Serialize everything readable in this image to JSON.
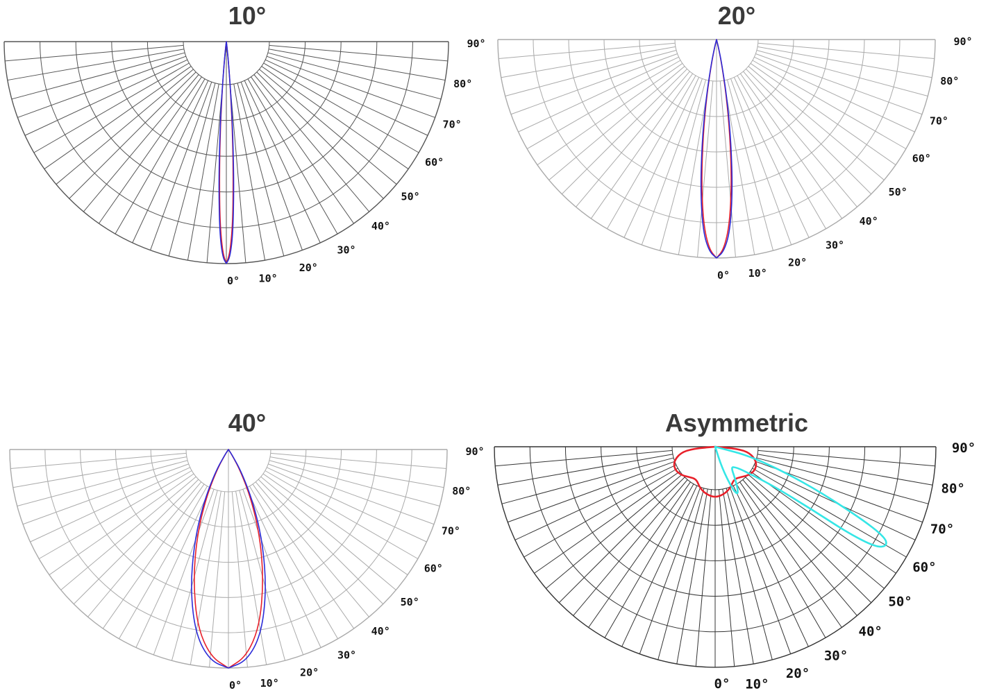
{
  "chart_data": [
    {
      "type": "polar",
      "title": "10°",
      "angle_ticks": [
        "0°",
        "10°",
        "20°",
        "30°",
        "40°",
        "50°",
        "60°",
        "70°",
        "80°",
        "90°"
      ],
      "style": {
        "grid_color": "#555555",
        "label_size": "small"
      },
      "series": [
        {
          "color": "#e8202a",
          "points": [
            [
              0,
              1.0
            ],
            [
              1,
              0.95
            ],
            [
              2,
              0.82
            ],
            [
              3,
              0.6
            ],
            [
              4,
              0.38
            ],
            [
              5,
              0.2
            ],
            [
              6,
              0.08
            ],
            [
              7,
              0.02
            ],
            [
              8,
              0.0
            ]
          ]
        },
        {
          "color": "#2b2bd8",
          "points": [
            [
              0,
              1.0
            ],
            [
              1,
              0.97
            ],
            [
              2,
              0.86
            ],
            [
              3,
              0.65
            ],
            [
              4,
              0.42
            ],
            [
              5,
              0.22
            ],
            [
              6,
              0.08
            ],
            [
              7,
              0.02
            ],
            [
              8,
              0.0
            ]
          ]
        }
      ]
    },
    {
      "type": "polar",
      "title": "20°",
      "angle_ticks": [
        "0°",
        "10°",
        "20°",
        "30°",
        "40°",
        "50°",
        "60°",
        "70°",
        "80°",
        "90°"
      ],
      "style": {
        "grid_color": "#aaaaaa",
        "label_size": "small"
      },
      "series": [
        {
          "color": "#e8202a",
          "points": [
            [
              0,
              1.0
            ],
            [
              2,
              0.96
            ],
            [
              4,
              0.85
            ],
            [
              6,
              0.66
            ],
            [
              8,
              0.44
            ],
            [
              10,
              0.25
            ],
            [
              12,
              0.11
            ],
            [
              14,
              0.03
            ],
            [
              16,
              0.0
            ]
          ]
        },
        {
          "color": "#2b2bd8",
          "points": [
            [
              0,
              1.0
            ],
            [
              2,
              0.97
            ],
            [
              4,
              0.88
            ],
            [
              6,
              0.7
            ],
            [
              8,
              0.48
            ],
            [
              10,
              0.28
            ],
            [
              12,
              0.12
            ],
            [
              14,
              0.04
            ],
            [
              16,
              0.0
            ]
          ]
        }
      ]
    },
    {
      "type": "polar",
      "title": "40°",
      "angle_ticks": [
        "0°",
        "10°",
        "20°",
        "30°",
        "40°",
        "50°",
        "60°",
        "70°",
        "80°",
        "90°"
      ],
      "style": {
        "grid_color": "#aaaaaa",
        "label_size": "small"
      },
      "series": [
        {
          "color": "#e8202a",
          "points": [
            [
              0,
              1.0
            ],
            [
              5,
              0.95
            ],
            [
              10,
              0.82
            ],
            [
              15,
              0.62
            ],
            [
              20,
              0.42
            ],
            [
              25,
              0.24
            ],
            [
              30,
              0.1
            ],
            [
              34,
              0.02
            ],
            [
              36,
              0.0
            ]
          ]
        },
        {
          "color": "#2b2bd8",
          "points": [
            [
              0,
              1.0
            ],
            [
              5,
              0.97
            ],
            [
              10,
              0.86
            ],
            [
              15,
              0.67
            ],
            [
              20,
              0.46
            ],
            [
              25,
              0.27
            ],
            [
              30,
              0.12
            ],
            [
              34,
              0.03
            ],
            [
              37,
              0.0
            ]
          ]
        }
      ]
    },
    {
      "type": "polar",
      "title": "Asymmetric",
      "angle_ticks": [
        "0°",
        "10°",
        "20°",
        "30°",
        "40°",
        "50°",
        "60°",
        "70°",
        "80°",
        "90°"
      ],
      "style": {
        "grid_color": "#333333",
        "label_size": "large"
      },
      "series": [
        {
          "color": "#e8202a",
          "closed": true,
          "points": [
            [
              -90,
              0.0
            ],
            [
              -85,
              0.1
            ],
            [
              -80,
              0.16
            ],
            [
              -70,
              0.2
            ],
            [
              -60,
              0.21
            ],
            [
              -50,
              0.2
            ],
            [
              -40,
              0.18
            ],
            [
              -30,
              0.17
            ],
            [
              -20,
              0.2
            ],
            [
              -10,
              0.22
            ],
            [
              0,
              0.23
            ],
            [
              10,
              0.22
            ],
            [
              20,
              0.2
            ],
            [
              30,
              0.17
            ],
            [
              40,
              0.18
            ],
            [
              50,
              0.2
            ],
            [
              60,
              0.21
            ],
            [
              70,
              0.2
            ],
            [
              80,
              0.16
            ],
            [
              85,
              0.1
            ],
            [
              90,
              0.0
            ]
          ]
        },
        {
          "color": "#35e6e6",
          "closed": true,
          "points": [
            [
              88,
              0.0
            ],
            [
              75,
              0.18
            ],
            [
              68,
              0.45
            ],
            [
              64,
              0.72
            ],
            [
              62,
              0.87
            ],
            [
              60,
              0.9
            ],
            [
              58,
              0.86
            ],
            [
              57,
              0.72
            ],
            [
              57,
              0.52
            ],
            [
              56,
              0.32
            ],
            [
              52,
              0.2
            ],
            [
              48,
              0.15
            ],
            [
              44,
              0.13
            ],
            [
              40,
              0.12
            ],
            [
              36,
              0.13
            ],
            [
              32,
              0.17
            ],
            [
              28,
              0.22
            ],
            [
              25,
              0.24
            ],
            [
              22,
              0.2
            ],
            [
              18,
              0.1
            ],
            [
              15,
              0.0
            ]
          ]
        }
      ]
    }
  ]
}
